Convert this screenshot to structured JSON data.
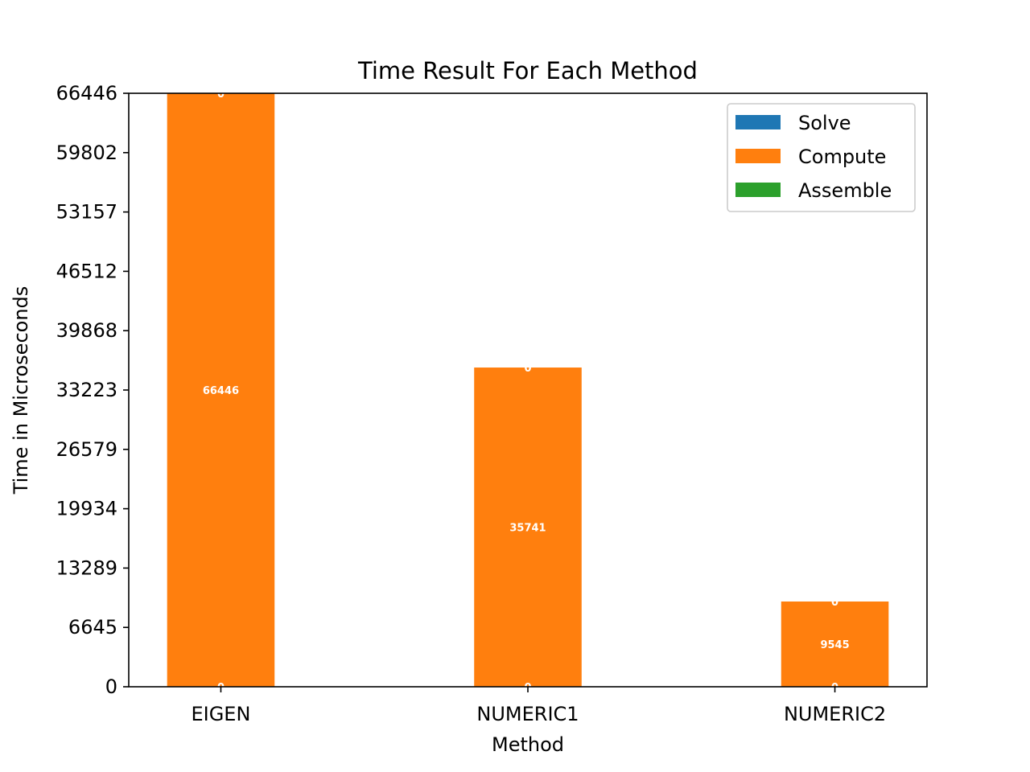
{
  "chart_data": {
    "type": "bar",
    "stacked": true,
    "title": "Time Result For Each Method",
    "xlabel": "Method",
    "ylabel": "Time in Microseconds",
    "categories": [
      "EIGEN",
      "NUMERIC1",
      "NUMERIC2"
    ],
    "series": [
      {
        "name": "Assemble",
        "color": "#2ca02c",
        "values": [
          0,
          0,
          0
        ]
      },
      {
        "name": "Compute",
        "color": "#ff7f0e",
        "values": [
          66446,
          35741,
          9545
        ]
      },
      {
        "name": "Solve",
        "color": "#1f77b4",
        "values": [
          0,
          0,
          0
        ]
      }
    ],
    "ylim": [
      0,
      66446
    ],
    "yticks": [
      "0",
      "6645",
      "13289",
      "19934",
      "26579",
      "33223",
      "39868",
      "46512",
      "53157",
      "59802",
      "66446"
    ],
    "legend": {
      "placement": "top-right",
      "entries": [
        {
          "name": "Solve",
          "color": "#1f77b4"
        },
        {
          "name": "Compute",
          "color": "#ff7f0e"
        },
        {
          "name": "Assemble",
          "color": "#2ca02c"
        }
      ]
    },
    "grid": false
  }
}
